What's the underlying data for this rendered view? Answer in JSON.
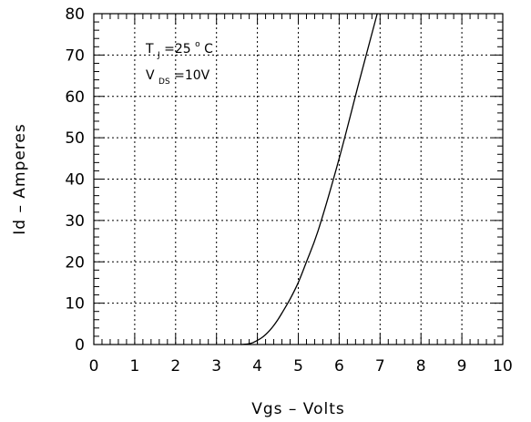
{
  "chart_data": {
    "type": "line",
    "xlabel": "Vgs – Volts",
    "ylabel": "Id – Amperes",
    "xlim": [
      0,
      10
    ],
    "ylim": [
      0,
      80
    ],
    "x_ticks": [
      "0",
      "1",
      "2",
      "3",
      "4",
      "5",
      "6",
      "7",
      "8",
      "9",
      "10"
    ],
    "y_ticks": [
      "0",
      "10",
      "20",
      "30",
      "40",
      "50",
      "60",
      "70",
      "80"
    ],
    "grid": true,
    "annotations": {
      "tj_label": "T",
      "tj_sub": "J",
      "tj_value": "=25",
      "tj_deg": "o",
      "tj_unit": "C",
      "vds_label": "V",
      "vds_sub": "DS",
      "vds_value": "=10V"
    },
    "series": [
      {
        "x": [
          3.6,
          3.8,
          3.9,
          4.0,
          4.1,
          4.2,
          4.3,
          4.4,
          4.5,
          4.6,
          4.8,
          5.0,
          5.2,
          5.5,
          6.0,
          6.5,
          6.93
        ],
        "y": [
          0,
          0.2,
          0.5,
          1.0,
          1.6,
          2.4,
          3.4,
          4.6,
          6.0,
          7.6,
          11.0,
          15.0,
          20.0,
          28.0,
          45.0,
          64.0,
          80.0
        ]
      }
    ],
    "colors": {
      "line": "#000000",
      "grid": "#000000",
      "background": "#ffffff"
    }
  }
}
